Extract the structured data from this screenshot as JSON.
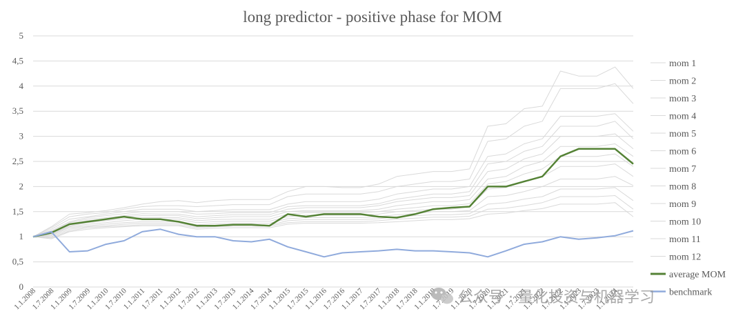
{
  "chart_data": {
    "type": "line",
    "title": "long predictor - positive phase for MOM",
    "xlabel": "",
    "ylabel": "",
    "ylim": [
      0,
      5
    ],
    "y_ticks": [
      "0",
      "0,5",
      "1",
      "1,5",
      "2",
      "2,5",
      "3",
      "3,5",
      "4",
      "4,5",
      "5"
    ],
    "x_ticks": [
      "1.1.2008",
      "1.7.2008",
      "1.1.2009",
      "1.7.2009",
      "1.1.2010",
      "1.7.2010",
      "1.1.2011",
      "1.7.2011",
      "1.1.2012",
      "1.7.2012",
      "1.1.2013",
      "1.7.2013",
      "1.1.2014",
      "1.7.2014",
      "1.1.2015",
      "1.7.2015",
      "1.1.2016",
      "1.7.2016",
      "1.1.2017",
      "1.7.2017",
      "1.1.2018",
      "1.7.2018",
      "1.1.2019",
      "1.7.2019",
      "1.1.2020",
      "1.7.2020",
      "1.1.2021",
      "1.7.2021",
      "1.1.2022",
      "1.7.2022",
      "1.1.2023",
      "1.7.2023",
      "1.1.2024"
    ],
    "x": [
      2008.0,
      2008.5,
      2009.0,
      2009.5,
      2010.0,
      2010.5,
      2011.0,
      2011.5,
      2012.0,
      2012.5,
      2013.0,
      2013.5,
      2014.0,
      2014.5,
      2015.0,
      2015.5,
      2016.0,
      2016.5,
      2017.0,
      2017.5,
      2018.0,
      2018.5,
      2019.0,
      2019.5,
      2020.0,
      2020.5,
      2021.0,
      2021.5,
      2022.0,
      2022.5,
      2023.0,
      2023.5,
      2024.0,
      2024.5
    ],
    "grid": "horizontal",
    "legend_position": "right",
    "series": [
      {
        "name": "mom 1",
        "color": "#d9d9d9",
        "width": 1,
        "values": [
          1.0,
          1.2,
          1.45,
          1.48,
          1.52,
          1.58,
          1.65,
          1.7,
          1.72,
          1.68,
          1.72,
          1.74,
          1.74,
          1.74,
          1.9,
          2.0,
          2.0,
          1.98,
          1.98,
          2.05,
          2.2,
          2.25,
          2.3,
          2.3,
          2.35,
          3.2,
          3.25,
          3.55,
          3.6,
          4.3,
          4.2,
          4.2,
          4.38,
          3.95
        ]
      },
      {
        "name": "mom 2",
        "color": "#d9d9d9",
        "width": 1,
        "values": [
          1.0,
          1.18,
          1.4,
          1.45,
          1.48,
          1.55,
          1.6,
          1.62,
          1.62,
          1.6,
          1.62,
          1.64,
          1.64,
          1.64,
          1.8,
          1.85,
          1.85,
          1.85,
          1.85,
          1.9,
          2.0,
          2.05,
          2.1,
          2.1,
          2.15,
          2.9,
          2.95,
          3.2,
          3.3,
          3.95,
          3.95,
          3.95,
          4.05,
          3.65
        ]
      },
      {
        "name": "mom 3",
        "color": "#d9d9d9",
        "width": 1,
        "values": [
          1.0,
          1.15,
          1.35,
          1.4,
          1.45,
          1.5,
          1.55,
          1.55,
          1.55,
          1.5,
          1.52,
          1.54,
          1.54,
          1.54,
          1.65,
          1.7,
          1.7,
          1.7,
          1.7,
          1.75,
          1.85,
          1.9,
          1.95,
          1.95,
          2.0,
          2.6,
          2.65,
          2.85,
          2.95,
          3.4,
          3.4,
          3.4,
          3.45,
          3.1
        ]
      },
      {
        "name": "mom 4",
        "color": "#d9d9d9",
        "width": 1,
        "values": [
          1.0,
          1.12,
          1.3,
          1.38,
          1.42,
          1.46,
          1.5,
          1.5,
          1.5,
          1.45,
          1.46,
          1.48,
          1.48,
          1.48,
          1.6,
          1.62,
          1.62,
          1.62,
          1.62,
          1.66,
          1.75,
          1.8,
          1.85,
          1.85,
          1.9,
          2.45,
          2.5,
          2.7,
          2.8,
          3.2,
          3.2,
          3.2,
          3.3,
          2.95
        ]
      },
      {
        "name": "mom 5",
        "color": "#d9d9d9",
        "width": 1,
        "values": [
          1.0,
          1.1,
          1.28,
          1.35,
          1.38,
          1.42,
          1.46,
          1.45,
          1.45,
          1.4,
          1.42,
          1.44,
          1.44,
          1.44,
          1.55,
          1.58,
          1.58,
          1.58,
          1.58,
          1.62,
          1.7,
          1.74,
          1.78,
          1.78,
          1.82,
          2.3,
          2.35,
          2.55,
          2.65,
          3.0,
          3.0,
          3.0,
          3.05,
          2.75
        ]
      },
      {
        "name": "mom 6",
        "color": "#d9d9d9",
        "width": 1,
        "values": [
          1.0,
          1.08,
          1.25,
          1.32,
          1.35,
          1.4,
          1.42,
          1.42,
          1.42,
          1.36,
          1.38,
          1.4,
          1.4,
          1.4,
          1.5,
          1.52,
          1.52,
          1.52,
          1.52,
          1.55,
          1.62,
          1.66,
          1.7,
          1.7,
          1.74,
          2.15,
          2.2,
          2.4,
          2.5,
          2.8,
          2.8,
          2.8,
          2.85,
          2.6
        ]
      },
      {
        "name": "mom 7",
        "color": "#d9d9d9",
        "width": 1,
        "values": [
          1.0,
          1.05,
          1.22,
          1.28,
          1.32,
          1.36,
          1.38,
          1.38,
          1.38,
          1.32,
          1.34,
          1.35,
          1.35,
          1.35,
          1.45,
          1.48,
          1.48,
          1.48,
          1.48,
          1.5,
          1.55,
          1.58,
          1.62,
          1.62,
          1.66,
          2.05,
          2.1,
          2.25,
          2.35,
          2.6,
          2.6,
          2.6,
          2.65,
          2.4
        ]
      },
      {
        "name": "mom 8",
        "color": "#d9d9d9",
        "width": 1,
        "values": [
          1.0,
          1.04,
          1.2,
          1.25,
          1.28,
          1.32,
          1.35,
          1.35,
          1.35,
          1.28,
          1.3,
          1.31,
          1.31,
          1.31,
          1.4,
          1.43,
          1.43,
          1.43,
          1.43,
          1.45,
          1.5,
          1.52,
          1.55,
          1.55,
          1.6,
          1.95,
          1.98,
          2.1,
          2.2,
          2.4,
          2.4,
          2.4,
          2.45,
          2.2
        ]
      },
      {
        "name": "mom 9",
        "color": "#d9d9d9",
        "width": 1,
        "values": [
          1.0,
          1.02,
          1.18,
          1.22,
          1.25,
          1.28,
          1.3,
          1.3,
          1.3,
          1.24,
          1.26,
          1.27,
          1.27,
          1.27,
          1.36,
          1.38,
          1.38,
          1.38,
          1.38,
          1.4,
          1.44,
          1.46,
          1.5,
          1.5,
          1.52,
          1.8,
          1.82,
          1.9,
          2.0,
          2.15,
          2.15,
          2.15,
          2.2,
          2.02
        ]
      },
      {
        "name": "mom 10",
        "color": "#d9d9d9",
        "width": 1,
        "values": [
          1.0,
          1.0,
          1.15,
          1.2,
          1.22,
          1.25,
          1.27,
          1.27,
          1.27,
          1.2,
          1.22,
          1.23,
          1.23,
          1.23,
          1.32,
          1.34,
          1.34,
          1.34,
          1.34,
          1.36,
          1.4,
          1.42,
          1.44,
          1.44,
          1.46,
          1.65,
          1.68,
          1.75,
          1.8,
          1.95,
          1.95,
          1.95,
          1.98,
          1.72
        ]
      },
      {
        "name": "mom 11",
        "color": "#d9d9d9",
        "width": 1,
        "values": [
          1.0,
          0.98,
          1.12,
          1.18,
          1.2,
          1.22,
          1.24,
          1.24,
          1.24,
          1.18,
          1.2,
          1.21,
          1.21,
          1.21,
          1.28,
          1.3,
          1.3,
          1.3,
          1.3,
          1.32,
          1.35,
          1.37,
          1.39,
          1.39,
          1.41,
          1.55,
          1.57,
          1.62,
          1.68,
          1.8,
          1.8,
          1.8,
          1.82,
          1.55
        ]
      },
      {
        "name": "mom 12",
        "color": "#d9d9d9",
        "width": 1,
        "values": [
          1.0,
          0.96,
          1.1,
          1.15,
          1.18,
          1.2,
          1.22,
          1.22,
          1.22,
          1.15,
          1.17,
          1.18,
          1.18,
          1.18,
          1.25,
          1.27,
          1.27,
          1.27,
          1.27,
          1.28,
          1.3,
          1.32,
          1.34,
          1.34,
          1.36,
          1.45,
          1.47,
          1.52,
          1.56,
          1.65,
          1.65,
          1.65,
          1.68,
          1.4
        ]
      },
      {
        "name": "average MOM",
        "color": "#548235",
        "width": 2.5,
        "values": [
          1.0,
          1.08,
          1.25,
          1.3,
          1.35,
          1.4,
          1.35,
          1.35,
          1.3,
          1.22,
          1.22,
          1.24,
          1.24,
          1.22,
          1.45,
          1.4,
          1.45,
          1.45,
          1.45,
          1.4,
          1.38,
          1.45,
          1.55,
          1.58,
          1.6,
          2.0,
          2.0,
          2.1,
          2.2,
          2.6,
          2.75,
          2.75,
          2.75,
          2.45
        ]
      },
      {
        "name": "benchmark",
        "color": "#8faadc",
        "width": 2,
        "values": [
          1.0,
          1.1,
          0.7,
          0.72,
          0.85,
          0.92,
          1.1,
          1.15,
          1.05,
          1.0,
          1.0,
          0.92,
          0.9,
          0.95,
          0.8,
          0.7,
          0.6,
          0.68,
          0.7,
          0.72,
          0.75,
          0.72,
          0.72,
          0.7,
          0.68,
          0.6,
          0.72,
          0.85,
          0.9,
          1.0,
          0.95,
          0.98,
          1.02,
          1.12
        ]
      }
    ]
  },
  "watermark": {
    "text": "公众号 · 量化投资与机器学习",
    "icon": "wechat-icon"
  }
}
